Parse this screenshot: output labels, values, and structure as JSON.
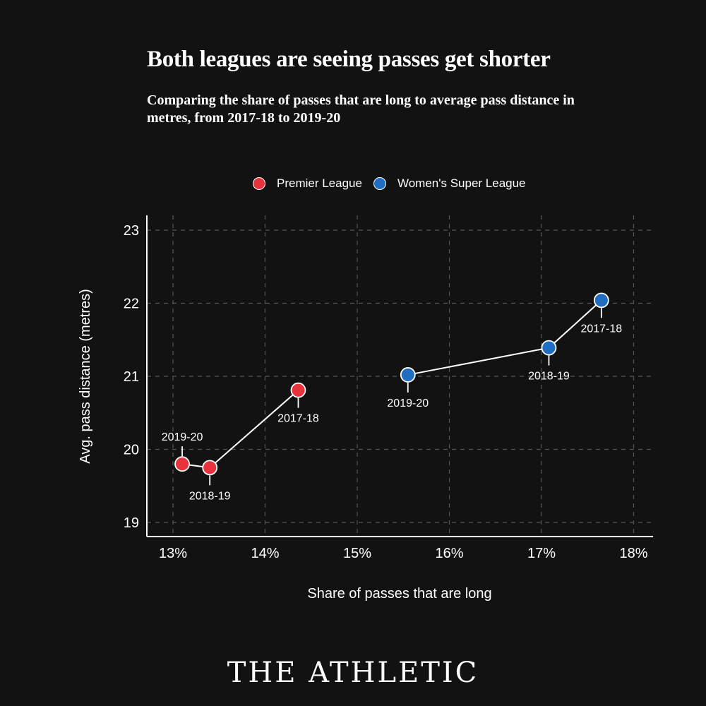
{
  "chart_data": {
    "type": "scatter",
    "title": "Both leagues are seeing passes get shorter",
    "subtitle": "Comparing the share of passes that are long to average pass distance in metres, from 2017-18 to 2019-20",
    "xlabel": "Share of passes that are long",
    "ylabel": "Avg. pass distance (metres)",
    "xlim": [
      12.8,
      18.2
    ],
    "ylim": [
      18.85,
      23.2
    ],
    "x_ticks": [
      13,
      14,
      15,
      16,
      17,
      18
    ],
    "x_tick_labels": [
      "13%",
      "14%",
      "15%",
      "16%",
      "17%",
      "18%"
    ],
    "y_ticks": [
      19,
      20,
      21,
      22,
      23
    ],
    "y_tick_labels": [
      "19",
      "20",
      "21",
      "22",
      "23"
    ],
    "grid": true,
    "legend_position": "top",
    "series": [
      {
        "name": "Premier League",
        "color": "#e8323c",
        "points": [
          {
            "label": "2017-18",
            "x": 14.36,
            "y": 20.81,
            "label_pos": "below"
          },
          {
            "label": "2018-19",
            "x": 13.4,
            "y": 19.75,
            "label_pos": "below"
          },
          {
            "label": "2019-20",
            "x": 13.1,
            "y": 19.8,
            "label_pos": "above"
          }
        ]
      },
      {
        "name": "Women's Super League",
        "color": "#1f6ec1",
        "points": [
          {
            "label": "2017-18",
            "x": 17.65,
            "y": 22.04,
            "label_pos": "below"
          },
          {
            "label": "2018-19",
            "x": 17.08,
            "y": 21.39,
            "label_pos": "below"
          },
          {
            "label": "2019-20",
            "x": 15.55,
            "y": 21.02,
            "label_pos": "below"
          }
        ]
      }
    ]
  },
  "brand": "THE ATHLETIC"
}
